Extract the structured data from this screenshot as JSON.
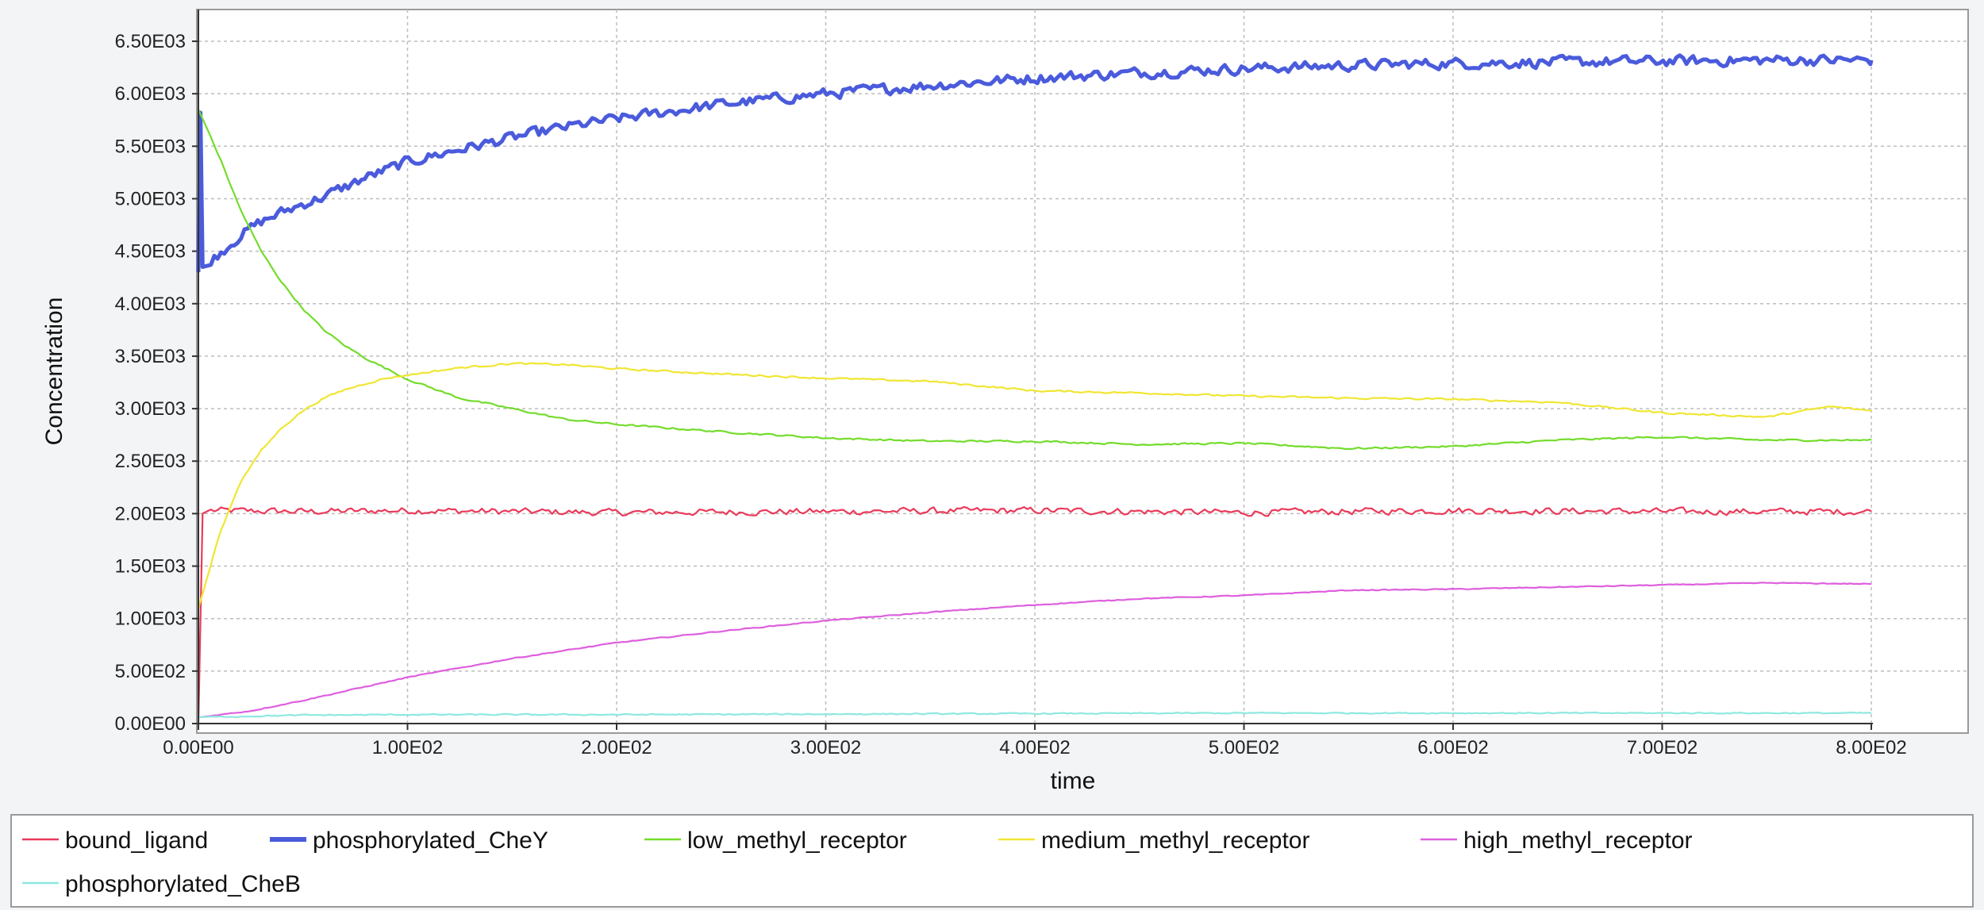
{
  "chart_data": {
    "type": "line",
    "xlabel": "time",
    "ylabel": "Concentration",
    "xlim": [
      0,
      800
    ],
    "ylim": [
      0,
      6500
    ],
    "x_ticks": [
      "0.00E00",
      "1.00E02",
      "2.00E02",
      "3.00E02",
      "4.00E02",
      "5.00E02",
      "6.00E02",
      "7.00E02",
      "8.00E02"
    ],
    "x_tick_values": [
      0,
      100,
      200,
      300,
      400,
      500,
      600,
      700,
      800
    ],
    "y_ticks": [
      "0.00E00",
      "5.00E02",
      "1.00E03",
      "1.50E03",
      "2.00E03",
      "2.50E03",
      "3.00E03",
      "3.50E03",
      "4.00E03",
      "4.50E03",
      "5.00E03",
      "5.50E03",
      "6.00E03",
      "6.50E03"
    ],
    "y_tick_values": [
      0,
      500,
      1000,
      1500,
      2000,
      2500,
      3000,
      3500,
      4000,
      4500,
      5000,
      5500,
      6000,
      6500
    ],
    "grid": true,
    "legend_position": "bottom",
    "series": [
      {
        "name": "bound_ligand",
        "color": "#ea3a5a",
        "noise": 45,
        "points": [
          [
            0,
            0
          ],
          [
            2,
            2000
          ],
          [
            5,
            2030
          ],
          [
            50,
            2020
          ],
          [
            100,
            2030
          ],
          [
            150,
            2020
          ],
          [
            200,
            2010
          ],
          [
            300,
            2020
          ],
          [
            400,
            2030
          ],
          [
            500,
            2010
          ],
          [
            600,
            2030
          ],
          [
            700,
            2020
          ],
          [
            800,
            2020
          ]
        ]
      },
      {
        "name": "phosphorylated_CheY",
        "color": "#4a5bdc",
        "noise": 70,
        "points": [
          [
            0,
            4300
          ],
          [
            1,
            5820
          ],
          [
            2,
            4350
          ],
          [
            10,
            4480
          ],
          [
            20,
            4650
          ],
          [
            30,
            4780
          ],
          [
            40,
            4870
          ],
          [
            50,
            4950
          ],
          [
            60,
            5020
          ],
          [
            80,
            5200
          ],
          [
            100,
            5350
          ],
          [
            125,
            5470
          ],
          [
            150,
            5580
          ],
          [
            175,
            5680
          ],
          [
            200,
            5760
          ],
          [
            250,
            5900
          ],
          [
            300,
            6000
          ],
          [
            350,
            6080
          ],
          [
            400,
            6150
          ],
          [
            450,
            6200
          ],
          [
            500,
            6240
          ],
          [
            550,
            6270
          ],
          [
            600,
            6290
          ],
          [
            650,
            6300
          ],
          [
            700,
            6310
          ],
          [
            750,
            6320
          ],
          [
            800,
            6320
          ]
        ]
      },
      {
        "name": "low_methyl_receptor",
        "color": "#74dc2c",
        "noise": 12,
        "points": [
          [
            0,
            5850
          ],
          [
            10,
            5400
          ],
          [
            20,
            4900
          ],
          [
            30,
            4500
          ],
          [
            40,
            4200
          ],
          [
            50,
            3950
          ],
          [
            60,
            3750
          ],
          [
            70,
            3600
          ],
          [
            80,
            3480
          ],
          [
            90,
            3380
          ],
          [
            100,
            3280
          ],
          [
            125,
            3100
          ],
          [
            150,
            3000
          ],
          [
            175,
            2900
          ],
          [
            200,
            2850
          ],
          [
            250,
            2780
          ],
          [
            300,
            2720
          ],
          [
            350,
            2690
          ],
          [
            400,
            2690
          ],
          [
            450,
            2660
          ],
          [
            500,
            2670
          ],
          [
            550,
            2620
          ],
          [
            600,
            2640
          ],
          [
            650,
            2700
          ],
          [
            700,
            2730
          ],
          [
            750,
            2700
          ],
          [
            800,
            2700
          ]
        ]
      },
      {
        "name": "medium_methyl_receptor",
        "color": "#f0e633",
        "noise": 12,
        "points": [
          [
            0,
            1100
          ],
          [
            10,
            1800
          ],
          [
            20,
            2300
          ],
          [
            30,
            2600
          ],
          [
            40,
            2820
          ],
          [
            50,
            2980
          ],
          [
            60,
            3100
          ],
          [
            70,
            3180
          ],
          [
            80,
            3240
          ],
          [
            90,
            3290
          ],
          [
            100,
            3320
          ],
          [
            125,
            3390
          ],
          [
            150,
            3430
          ],
          [
            175,
            3420
          ],
          [
            200,
            3380
          ],
          [
            250,
            3330
          ],
          [
            300,
            3290
          ],
          [
            350,
            3260
          ],
          [
            400,
            3170
          ],
          [
            450,
            3150
          ],
          [
            500,
            3120
          ],
          [
            550,
            3100
          ],
          [
            600,
            3090
          ],
          [
            650,
            3060
          ],
          [
            700,
            2960
          ],
          [
            750,
            2920
          ],
          [
            780,
            3020
          ],
          [
            800,
            2980
          ]
        ]
      },
      {
        "name": "high_methyl_receptor",
        "color": "#de5fde",
        "noise": 6,
        "points": [
          [
            0,
            60
          ],
          [
            25,
            120
          ],
          [
            50,
            220
          ],
          [
            75,
            330
          ],
          [
            100,
            440
          ],
          [
            150,
            620
          ],
          [
            200,
            770
          ],
          [
            250,
            880
          ],
          [
            300,
            980
          ],
          [
            350,
            1060
          ],
          [
            400,
            1130
          ],
          [
            450,
            1190
          ],
          [
            500,
            1220
          ],
          [
            550,
            1270
          ],
          [
            600,
            1280
          ],
          [
            650,
            1300
          ],
          [
            700,
            1320
          ],
          [
            750,
            1340
          ],
          [
            800,
            1330
          ]
        ]
      },
      {
        "name": "phosphorylated_CheB",
        "color": "#8fe8e0",
        "noise": 8,
        "points": [
          [
            0,
            60
          ],
          [
            50,
            80
          ],
          [
            100,
            85
          ],
          [
            200,
            85
          ],
          [
            300,
            90
          ],
          [
            400,
            95
          ],
          [
            500,
            100
          ],
          [
            600,
            100
          ],
          [
            700,
            100
          ],
          [
            800,
            100
          ]
        ]
      }
    ]
  }
}
